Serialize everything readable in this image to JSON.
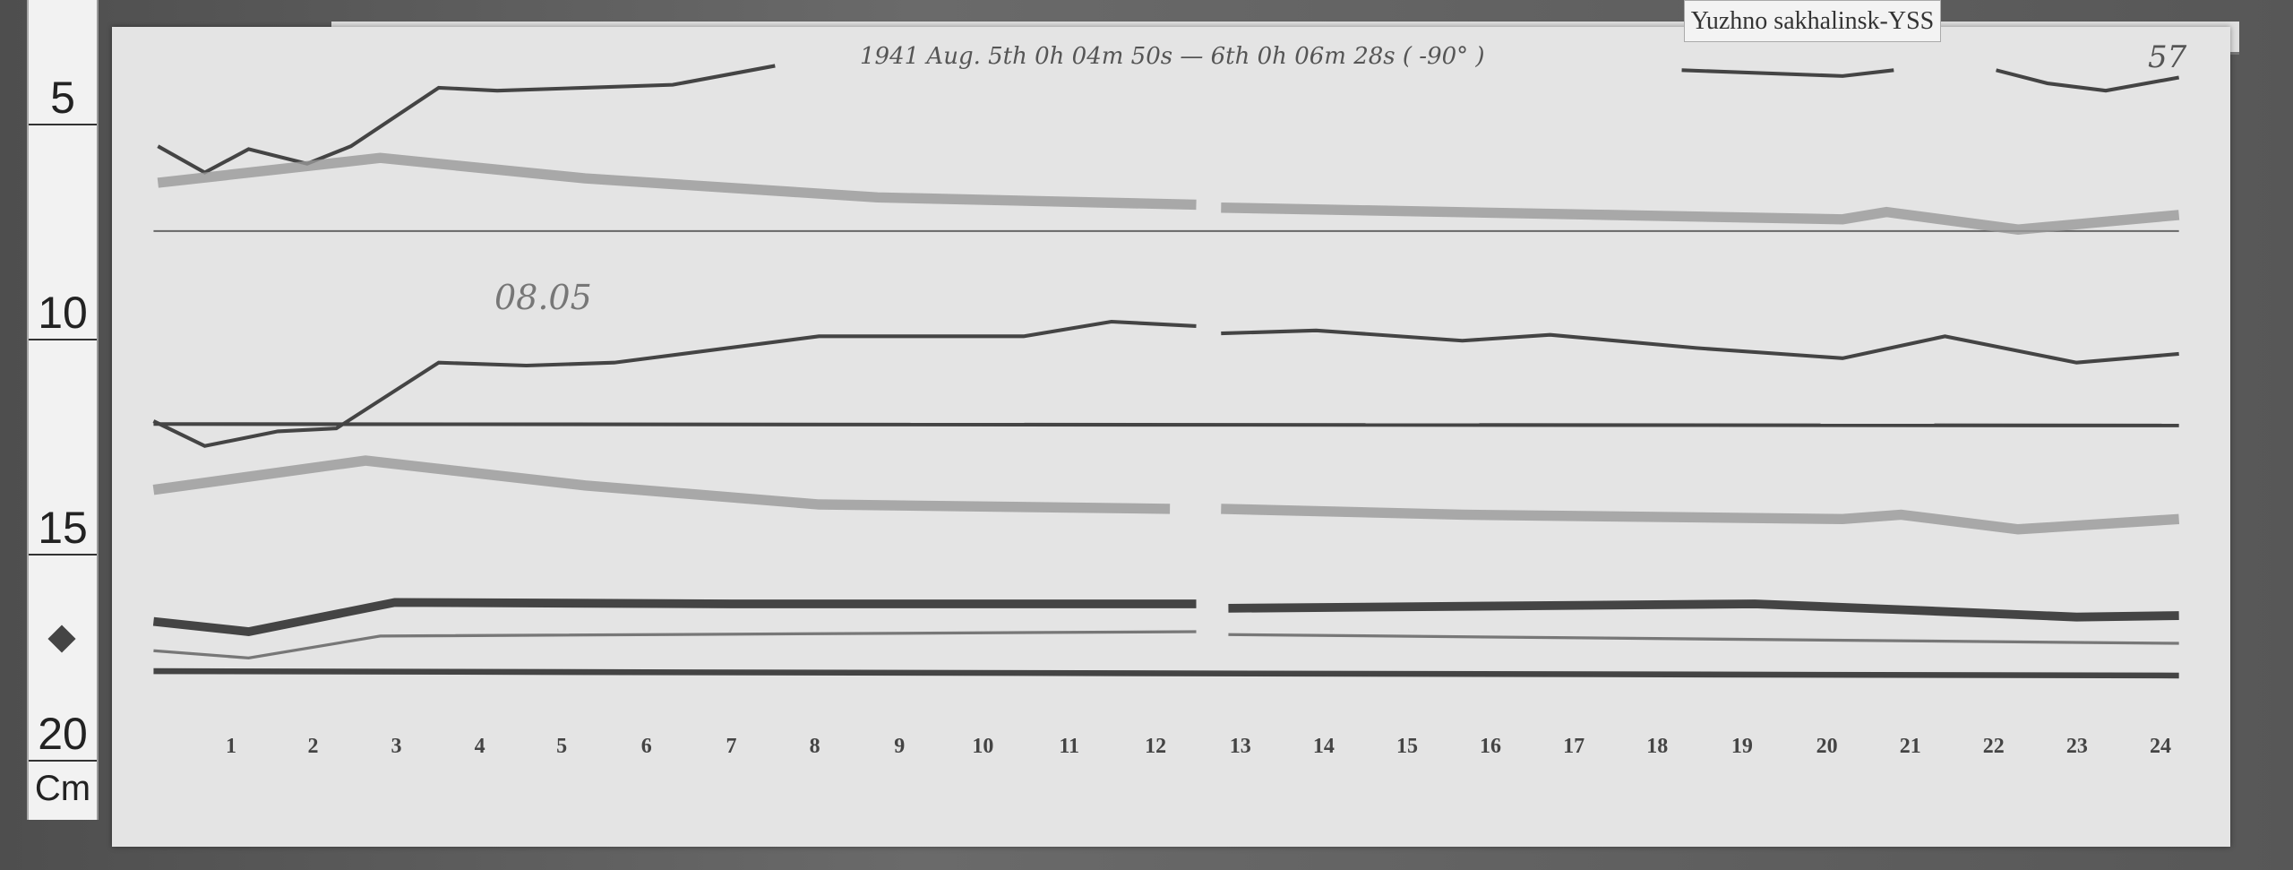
{
  "station_label": "Yuzhno sakhalinsk-YSS",
  "header_note": "1941 Aug. 5th 0h 04m 50s — 6th 0h 06m 28s ( -90° )",
  "sheet_number": "57",
  "date_note": "08.05",
  "ruler": {
    "marks": [
      "5",
      "10",
      "15",
      "20"
    ],
    "unit": "Cm"
  },
  "hour_labels": [
    "1",
    "2",
    "3",
    "4",
    "5",
    "6",
    "7",
    "8",
    "9",
    "10",
    "11",
    "12",
    "13",
    "14",
    "15",
    "16",
    "17",
    "18",
    "19",
    "20",
    "21",
    "22",
    "23",
    "24"
  ],
  "colors": {
    "paper": "#e4e4e4",
    "trace": "#444444",
    "board": "#5b5b5b"
  }
}
